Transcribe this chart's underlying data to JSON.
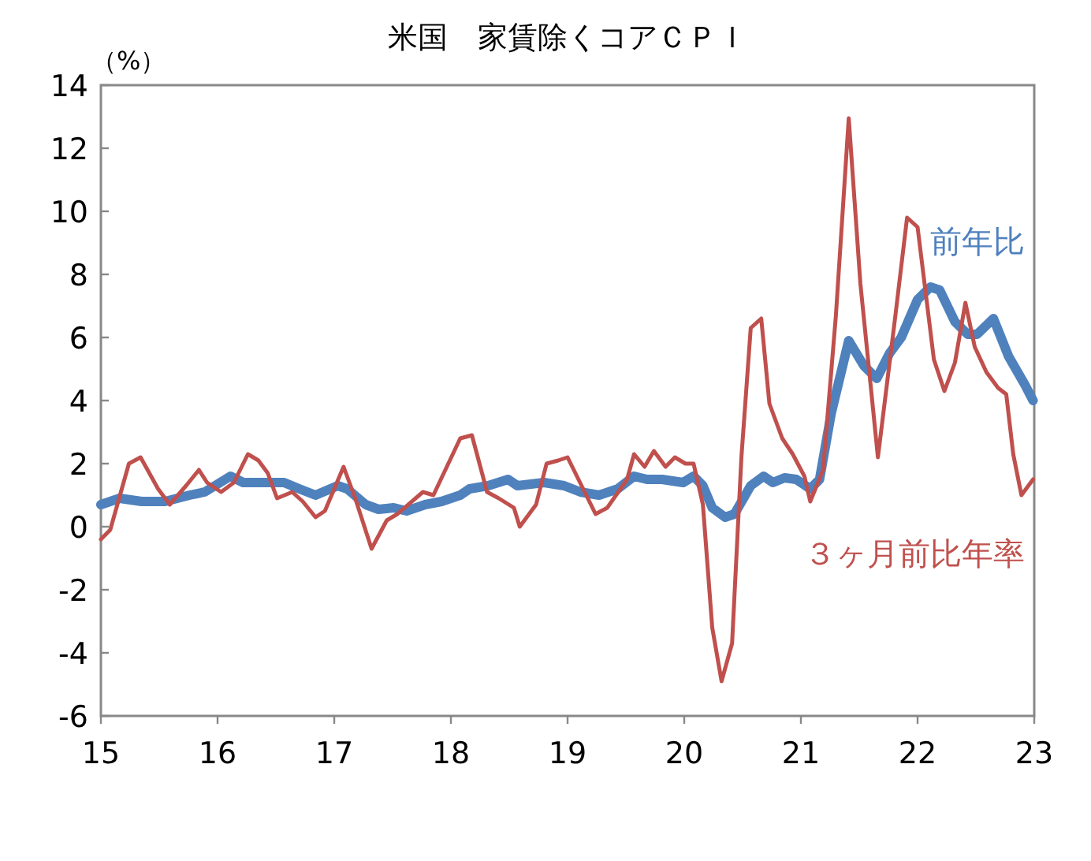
{
  "chart_data": {
    "type": "line",
    "title": "米国　家賃除くコアＣＰＩ",
    "ylabel": "（%）",
    "xlim": [
      15,
      23
    ],
    "xticks": [
      15,
      16,
      17,
      18,
      19,
      20,
      21,
      22,
      23
    ],
    "ylim": [
      -6,
      14
    ],
    "yticks": [
      -6,
      -4,
      -2,
      0,
      2,
      4,
      6,
      8,
      10,
      12,
      14
    ],
    "grid": false,
    "legend": false,
    "marker": "none",
    "line_style": "solid",
    "series": [
      {
        "name": "前年比",
        "color": "#4f81bd",
        "x": [
          15.0,
          15.16,
          15.35,
          15.55,
          15.76,
          15.89,
          16.11,
          16.22,
          16.43,
          16.57,
          16.7,
          16.84,
          17.03,
          17.11,
          17.27,
          17.38,
          17.51,
          17.62,
          17.78,
          17.92,
          18.08,
          18.16,
          18.32,
          18.49,
          18.57,
          18.8,
          18.97,
          19.11,
          19.27,
          19.43,
          19.57,
          19.68,
          19.81,
          19.99,
          20.08,
          20.16,
          20.24,
          20.35,
          20.43,
          20.57,
          20.68,
          20.76,
          20.86,
          20.96,
          21.08,
          21.16,
          21.26,
          21.41,
          21.54,
          21.65,
          21.76,
          21.86,
          22.0,
          22.11,
          22.19,
          22.32,
          22.43,
          22.51,
          22.65,
          22.78,
          22.92,
          22.99
        ],
        "values": [
          0.7,
          0.9,
          0.8,
          0.8,
          1.0,
          1.1,
          1.6,
          1.4,
          1.4,
          1.4,
          1.2,
          1.0,
          1.3,
          1.2,
          0.7,
          0.55,
          0.6,
          0.5,
          0.7,
          0.8,
          1.0,
          1.2,
          1.3,
          1.5,
          1.3,
          1.4,
          1.3,
          1.1,
          1.0,
          1.2,
          1.6,
          1.5,
          1.5,
          1.4,
          1.6,
          1.3,
          0.6,
          0.3,
          0.4,
          1.3,
          1.6,
          1.4,
          1.55,
          1.5,
          1.2,
          1.5,
          3.6,
          5.9,
          5.1,
          4.7,
          5.5,
          6.0,
          7.2,
          7.6,
          7.5,
          6.5,
          6.1,
          6.1,
          6.6,
          5.4,
          4.5,
          4.0
        ]
      },
      {
        "name": "３ヶ月前比年率",
        "color": "#c0504d",
        "x": [
          15.0,
          15.08,
          15.24,
          15.34,
          15.49,
          15.59,
          15.73,
          15.84,
          15.91,
          16.03,
          16.14,
          16.26,
          16.35,
          16.43,
          16.51,
          16.64,
          16.73,
          16.84,
          16.92,
          17.08,
          17.18,
          17.32,
          17.45,
          17.54,
          17.76,
          17.85,
          18.08,
          18.18,
          18.31,
          18.41,
          18.54,
          18.59,
          18.73,
          18.82,
          18.92,
          19.0,
          19.24,
          19.34,
          19.51,
          19.57,
          19.66,
          19.74,
          19.84,
          19.92,
          20.01,
          20.08,
          20.16,
          20.24,
          20.32,
          20.41,
          20.49,
          20.57,
          20.66,
          20.73,
          20.84,
          20.93,
          21.03,
          21.08,
          21.19,
          21.3,
          21.41,
          21.51,
          21.66,
          21.81,
          21.91,
          22.0,
          22.14,
          22.23,
          22.32,
          22.41,
          22.49,
          22.59,
          22.69,
          22.76,
          22.82,
          22.89,
          22.99
        ],
        "values": [
          -0.4,
          -0.1,
          2.0,
          2.2,
          1.2,
          0.7,
          1.3,
          1.8,
          1.4,
          1.1,
          1.4,
          2.3,
          2.1,
          1.7,
          0.9,
          1.1,
          0.8,
          0.3,
          0.5,
          1.9,
          0.9,
          -0.7,
          0.2,
          0.4,
          1.1,
          1.0,
          2.8,
          2.9,
          1.1,
          0.9,
          0.6,
          0.0,
          0.7,
          2.0,
          2.1,
          2.2,
          0.4,
          0.6,
          1.5,
          2.3,
          1.9,
          2.4,
          1.9,
          2.2,
          2.0,
          2.0,
          0.7,
          -3.2,
          -4.9,
          -3.7,
          2.2,
          6.3,
          6.6,
          3.9,
          2.8,
          2.3,
          1.6,
          0.8,
          1.8,
          6.7,
          12.95,
          7.7,
          2.2,
          6.7,
          9.8,
          9.5,
          5.3,
          4.3,
          5.2,
          7.1,
          5.7,
          4.9,
          4.4,
          4.2,
          2.3,
          1.0,
          1.5
        ]
      }
    ]
  }
}
